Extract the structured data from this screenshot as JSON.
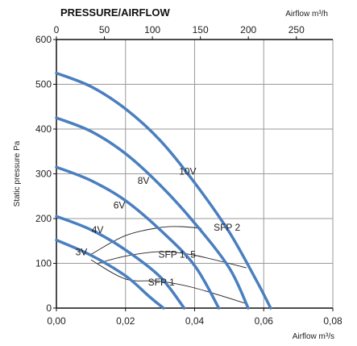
{
  "chart_data": {
    "type": "line",
    "title": "PRESSURE/AIRFLOW",
    "xlabel": "Airflow m³/s",
    "x2label": "Airflow m³/h",
    "ylabel": "Static pressure Pa",
    "xlim": [
      0,
      0.08
    ],
    "ylim": [
      0,
      600
    ],
    "x2lim": [
      0,
      288
    ],
    "grid": true,
    "xticks": [
      "0,00",
      "0,02",
      "0,04",
      "0,06",
      "0,08"
    ],
    "x2ticks": [
      "0",
      "50",
      "100",
      "150",
      "200",
      "250"
    ],
    "yticks": [
      "0",
      "100",
      "200",
      "300",
      "400",
      "500",
      "600"
    ],
    "colors": {
      "curve": "#4a7fbf",
      "sfp": "#222222",
      "grid": "#9a9a9a"
    },
    "series": [
      {
        "name": "10V",
        "label_at": [
          0.0355,
          305
        ],
        "points": [
          [
            0,
            525
          ],
          [
            0.01,
            495
          ],
          [
            0.02,
            445
          ],
          [
            0.03,
            375
          ],
          [
            0.04,
            280
          ],
          [
            0.05,
            170
          ],
          [
            0.058,
            60
          ],
          [
            0.062,
            0
          ]
        ]
      },
      {
        "name": "8V",
        "label_at": [
          0.0235,
          285
        ],
        "points": [
          [
            0,
            425
          ],
          [
            0.01,
            395
          ],
          [
            0.02,
            345
          ],
          [
            0.03,
            275
          ],
          [
            0.04,
            190
          ],
          [
            0.05,
            90
          ],
          [
            0.0555,
            0
          ]
        ]
      },
      {
        "name": "6V",
        "label_at": [
          0.0165,
          230
        ],
        "points": [
          [
            0,
            315
          ],
          [
            0.01,
            285
          ],
          [
            0.02,
            240
          ],
          [
            0.03,
            175
          ],
          [
            0.04,
            95
          ],
          [
            0.047,
            0
          ]
        ]
      },
      {
        "name": "4V",
        "label_at": [
          0.0102,
          175
        ],
        "points": [
          [
            0,
            205
          ],
          [
            0.01,
            175
          ],
          [
            0.02,
            130
          ],
          [
            0.03,
            70
          ],
          [
            0.037,
            0
          ]
        ]
      },
      {
        "name": "3V",
        "label_at": [
          0.0055,
          125
        ],
        "points": [
          [
            0,
            152
          ],
          [
            0.01,
            118
          ],
          [
            0.02,
            72
          ],
          [
            0.027,
            25
          ],
          [
            0.031,
            0
          ]
        ]
      }
    ],
    "sfp_curves": [
      {
        "name": "SFP 2",
        "label_at": [
          0.0455,
          180
        ],
        "points": [
          [
            0.01,
            120
          ],
          [
            0.02,
            162
          ],
          [
            0.03,
            180
          ],
          [
            0.036,
            182
          ],
          [
            0.042,
            178
          ]
        ]
      },
      {
        "name": "SFP 1, 5",
        "label_at": [
          0.0295,
          120
        ],
        "points": [
          [
            0.012,
            100
          ],
          [
            0.02,
            116
          ],
          [
            0.03,
            126
          ],
          [
            0.04,
            118
          ],
          [
            0.055,
            90
          ]
        ]
      },
      {
        "name": "SFP 1",
        "label_at": [
          0.0265,
          58
        ],
        "points": [
          [
            0.01,
            108
          ],
          [
            0.02,
            65
          ],
          [
            0.03,
            60
          ],
          [
            0.04,
            45
          ],
          [
            0.055,
            10
          ]
        ]
      }
    ]
  }
}
